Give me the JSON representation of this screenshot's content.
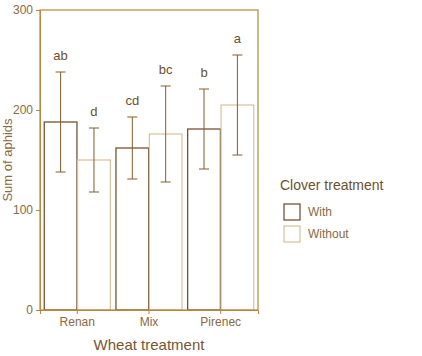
{
  "chart_data": {
    "type": "bar",
    "x_label": "Wheat treatment",
    "y_label": "Sum of aphids",
    "categories": [
      "Renan",
      "Mix",
      "Pirenec"
    ],
    "series": [
      {
        "name": "With",
        "color": "#6e4424",
        "values": [
          188,
          162,
          181
        ],
        "errors": [
          50,
          31,
          40
        ],
        "letters": [
          "ab",
          "cd",
          "b"
        ]
      },
      {
        "name": "Without",
        "color": "#dcc09a",
        "values": [
          150,
          176,
          205
        ],
        "errors": [
          32,
          48,
          50
        ],
        "letters": [
          "d",
          "bc",
          "a"
        ]
      }
    ],
    "ylim": [
      0,
      300
    ],
    "yticks": [
      0,
      100,
      200,
      300
    ],
    "grid": false,
    "legend": "right",
    "legend_title": "Clover treatment"
  }
}
